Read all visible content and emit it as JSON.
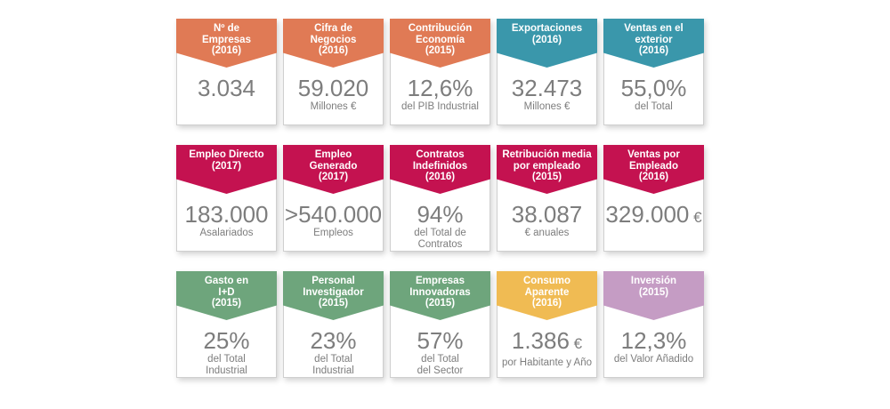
{
  "colors": {
    "orange": "#e07a55",
    "teal": "#3a97ab",
    "crimson": "#c41250",
    "green": "#6ea57c",
    "yellow": "#f0bb53",
    "lilac": "#c59cc4"
  },
  "cards": [
    {
      "title": "Nº de\nEmpresas\n(2016)",
      "value": "3.034",
      "unit": "",
      "sub": "",
      "color": "orange"
    },
    {
      "title": "Cifra de\nNegocios\n(2016)",
      "value": "59.020",
      "unit": "",
      "sub": "Millones €",
      "color": "orange"
    },
    {
      "title": "Contribución\nEconomía\n(2015)",
      "value": "12,6%",
      "unit": "",
      "sub": "del PIB Industrial",
      "color": "orange"
    },
    {
      "title": "Exportaciones\n(2016)",
      "value": "32.473",
      "unit": "",
      "sub": "Millones €",
      "color": "teal"
    },
    {
      "title": "Ventas en el\nexterior\n(2016)",
      "value": "55,0%",
      "unit": "",
      "sub": "del Total",
      "color": "teal"
    },
    {
      "title": "Empleo Directo\n(2017)",
      "value": "183.000",
      "unit": "",
      "sub": "Asalariados",
      "color": "crimson"
    },
    {
      "title": "Empleo\nGenerado\n(2017)",
      "value": ">540.000",
      "unit": "",
      "sub": "Empleos",
      "color": "crimson"
    },
    {
      "title": "Contratos\nIndefinidos\n(2016)",
      "value": "94%",
      "unit": "",
      "sub": "del Total de\nContratos",
      "color": "crimson"
    },
    {
      "title": "Retribución media\npor empleado\n(2015)",
      "value": "38.087",
      "unit": "",
      "sub": "€ anuales",
      "color": "crimson"
    },
    {
      "title": "Ventas por\nEmpleado\n(2016)",
      "value": "329.000",
      "unit": " €",
      "sub": "",
      "color": "crimson"
    },
    {
      "title": "Gasto en\nI+D\n(2015)",
      "value": "25%",
      "unit": "",
      "sub": "del Total\nIndustrial",
      "color": "green"
    },
    {
      "title": "Personal\nInvestigador\n(2015)",
      "value": "23%",
      "unit": "",
      "sub": "del Total\nIndustrial",
      "color": "green"
    },
    {
      "title": "Empresas\nInnovadoras\n(2015)",
      "value": "57%",
      "unit": "",
      "sub": "del Total\ndel Sector",
      "color": "green"
    },
    {
      "title": "Consumo\nAparente\n(2016)",
      "value": "1.386",
      "unit": " €",
      "sub": "por Habitante y Año",
      "color": "yellow"
    },
    {
      "title": "Inversión\n(2015)",
      "value": "12,3%",
      "unit": "",
      "sub": "del Valor Añadido",
      "color": "lilac"
    }
  ]
}
